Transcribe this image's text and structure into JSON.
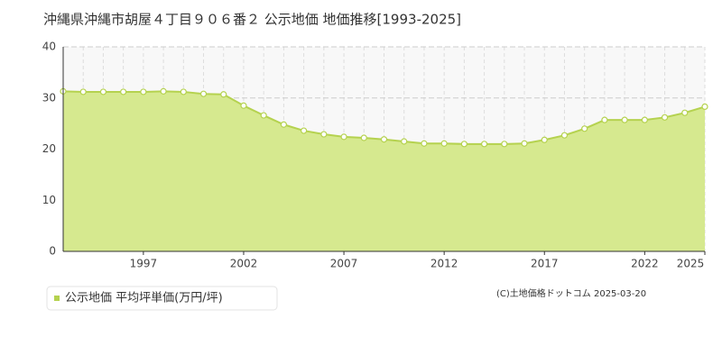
{
  "chart_data": {
    "type": "area",
    "title": "沖縄県沖縄市胡屋４丁目９０６番２ 公示地価 地価推移[1993-2025]",
    "x": [
      1993,
      1994,
      1995,
      1996,
      1997,
      1998,
      1999,
      2000,
      2001,
      2002,
      2003,
      2004,
      2005,
      2006,
      2007,
      2008,
      2009,
      2010,
      2011,
      2012,
      2013,
      2014,
      2015,
      2016,
      2017,
      2018,
      2019,
      2020,
      2021,
      2022,
      2023,
      2024,
      2025
    ],
    "series": [
      {
        "name": "公示地価 平均坪単価(万円/坪)",
        "color": "#b5d24f",
        "values": [
          31.3,
          31.2,
          31.2,
          31.2,
          31.2,
          31.3,
          31.2,
          30.8,
          30.7,
          28.5,
          26.6,
          24.8,
          23.6,
          22.9,
          22.4,
          22.2,
          21.9,
          21.5,
          21.1,
          21.1,
          21.0,
          21.0,
          21.0,
          21.1,
          21.8,
          22.7,
          24.0,
          25.7,
          25.7,
          25.7,
          26.2,
          27.1,
          28.3
        ]
      }
    ],
    "xlim": [
      1993,
      2025
    ],
    "xticks": [
      1997,
      2002,
      2007,
      2012,
      2017,
      2022,
      2025
    ],
    "ylim": [
      0,
      40
    ],
    "yticks": [
      0,
      10,
      20,
      30,
      40
    ],
    "grid": true,
    "source": "(C)土地価格ドットコム 2025-03-20"
  }
}
